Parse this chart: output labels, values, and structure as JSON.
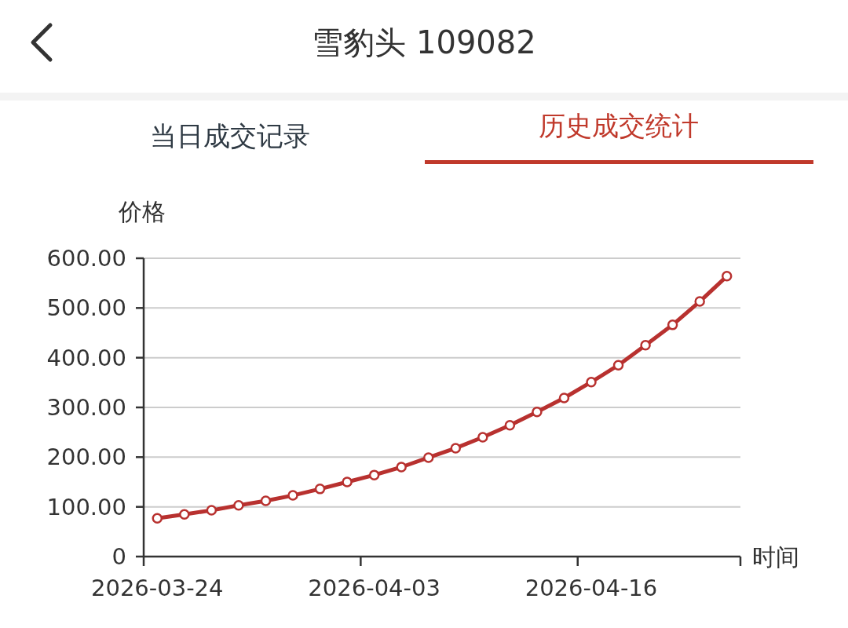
{
  "chart_data": {
    "type": "line",
    "title": "雪豹头 109082",
    "annotations": [
      "当日成交记录",
      "历史成交统计"
    ],
    "ylabel": "价格",
    "xlabel": "时间",
    "categories": [
      "2026-03-24",
      null,
      null,
      null,
      null,
      null,
      null,
      null,
      "2026-04-03",
      null,
      null,
      null,
      null,
      null,
      null,
      null,
      "2026-04-16",
      null,
      null,
      null,
      null,
      null
    ],
    "series": [
      {
        "color": "#b8312f",
        "values": [
          77,
          85,
          93,
          103,
          112,
          123,
          136,
          150,
          164,
          180,
          199,
          218,
          240,
          264,
          291,
          319,
          351,
          385,
          425,
          466,
          513,
          564
        ]
      }
    ],
    "ylim": [
      0,
      600
    ],
    "yticks": [
      0,
      {
        "value": 100,
        "label": "100.00"
      },
      {
        "value": 200,
        "label": "200.00"
      },
      {
        "value": 300,
        "label": "300.00"
      },
      {
        "value": 400,
        "label": "400.00"
      },
      {
        "value": 500,
        "label": "500.00"
      },
      {
        "value": 600,
        "label": "600.00"
      }
    ],
    "grid": "y",
    "marker": "circle",
    "line_style": "solid"
  }
}
